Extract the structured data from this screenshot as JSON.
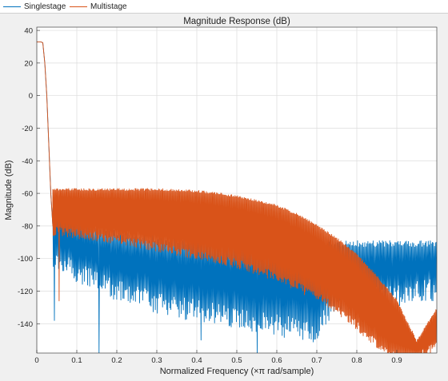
{
  "legend": {
    "items": [
      {
        "label": "Singlestage",
        "color": "#0072bd"
      },
      {
        "label": "Multistage",
        "color": "#d95319"
      }
    ]
  },
  "chart_data": {
    "type": "line",
    "title": "Magnitude Response (dB)",
    "xlabel": "Normalized Frequency (×π rad/sample)",
    "ylabel": "Magnitude (dB)",
    "xlim": [
      0,
      1
    ],
    "ylim": [
      -158,
      42
    ],
    "xticks": [
      0,
      0.1,
      0.2,
      0.3,
      0.4,
      0.5,
      0.6,
      0.7,
      0.8,
      0.9
    ],
    "xtick_labels": [
      "0",
      "0.1",
      "0.2",
      "0.3",
      "0.4",
      "0.5",
      "0.6",
      "0.7",
      "0.8",
      "0.9"
    ],
    "yticks": [
      40,
      20,
      0,
      -20,
      -40,
      -60,
      -80,
      -100,
      -120,
      -140
    ],
    "ytick_labels": [
      "40",
      "20",
      "0",
      "-20",
      "-40",
      "-60",
      "-80",
      "-100",
      "-120",
      "-140"
    ],
    "grid": true,
    "legend_position": "top-left, outside the plot",
    "series": [
      {
        "name": "Singlestage",
        "color": "#0072bd",
        "passband": {
          "x": [
            0,
            0.01,
            0.015,
            0.02,
            0.025,
            0.03,
            0.035,
            0.04
          ],
          "y": [
            33,
            33,
            32.5,
            20,
            0,
            -30,
            -60,
            -80
          ]
        },
        "stopband_upper": {
          "x": [
            0.04,
            0.1,
            0.2,
            0.3,
            0.4,
            0.5,
            0.6,
            0.7,
            0.74,
            1.0
          ],
          "y": [
            -66,
            -76,
            -83,
            -86,
            -88,
            -90,
            -91,
            -90,
            -89,
            -89
          ]
        },
        "stopband_lower": {
          "x": [
            0.04,
            0.1,
            0.2,
            0.3,
            0.4,
            0.5,
            0.6,
            0.7,
            0.74,
            1.0
          ],
          "y": [
            -92,
            -102,
            -112,
            -120,
            -125,
            -130,
            -134,
            -138,
            -120,
            -112
          ]
        },
        "deep_nulls": {
          "x": [
            0.045,
            0.155,
            0.41,
            0.55,
            0.73,
            0.89
          ],
          "y": [
            -138,
            -158,
            -150,
            -158,
            -138,
            -135
          ]
        }
      },
      {
        "name": "Multistage",
        "color": "#d95319",
        "passband": {
          "x": [
            0,
            0.01,
            0.015,
            0.02,
            0.025,
            0.03,
            0.035,
            0.04
          ],
          "y": [
            33,
            33,
            32.5,
            20,
            0,
            -30,
            -60,
            -80
          ]
        },
        "stopband_upper": {
          "x": [
            0.04,
            0.1,
            0.2,
            0.3,
            0.4,
            0.5,
            0.6,
            0.65,
            0.7,
            0.75,
            0.8,
            0.85,
            0.9,
            0.95,
            1.0
          ],
          "y": [
            -57,
            -57,
            -57,
            -57,
            -58,
            -61,
            -67,
            -72,
            -79,
            -87,
            -97,
            -110,
            -125,
            -150,
            -130
          ]
        },
        "stopband_lower": {
          "x": [
            0.04,
            0.1,
            0.2,
            0.3,
            0.4,
            0.5,
            0.6,
            0.65,
            0.7,
            0.75,
            0.8,
            0.85,
            0.9,
            0.95,
            1.0
          ],
          "y": [
            -80,
            -82,
            -85,
            -90,
            -95,
            -100,
            -108,
            -114,
            -120,
            -128,
            -138,
            -150,
            -158,
            -158,
            -150
          ]
        },
        "deep_nulls": {
          "x": [
            0.055
          ],
          "y": [
            -126
          ]
        }
      }
    ]
  }
}
